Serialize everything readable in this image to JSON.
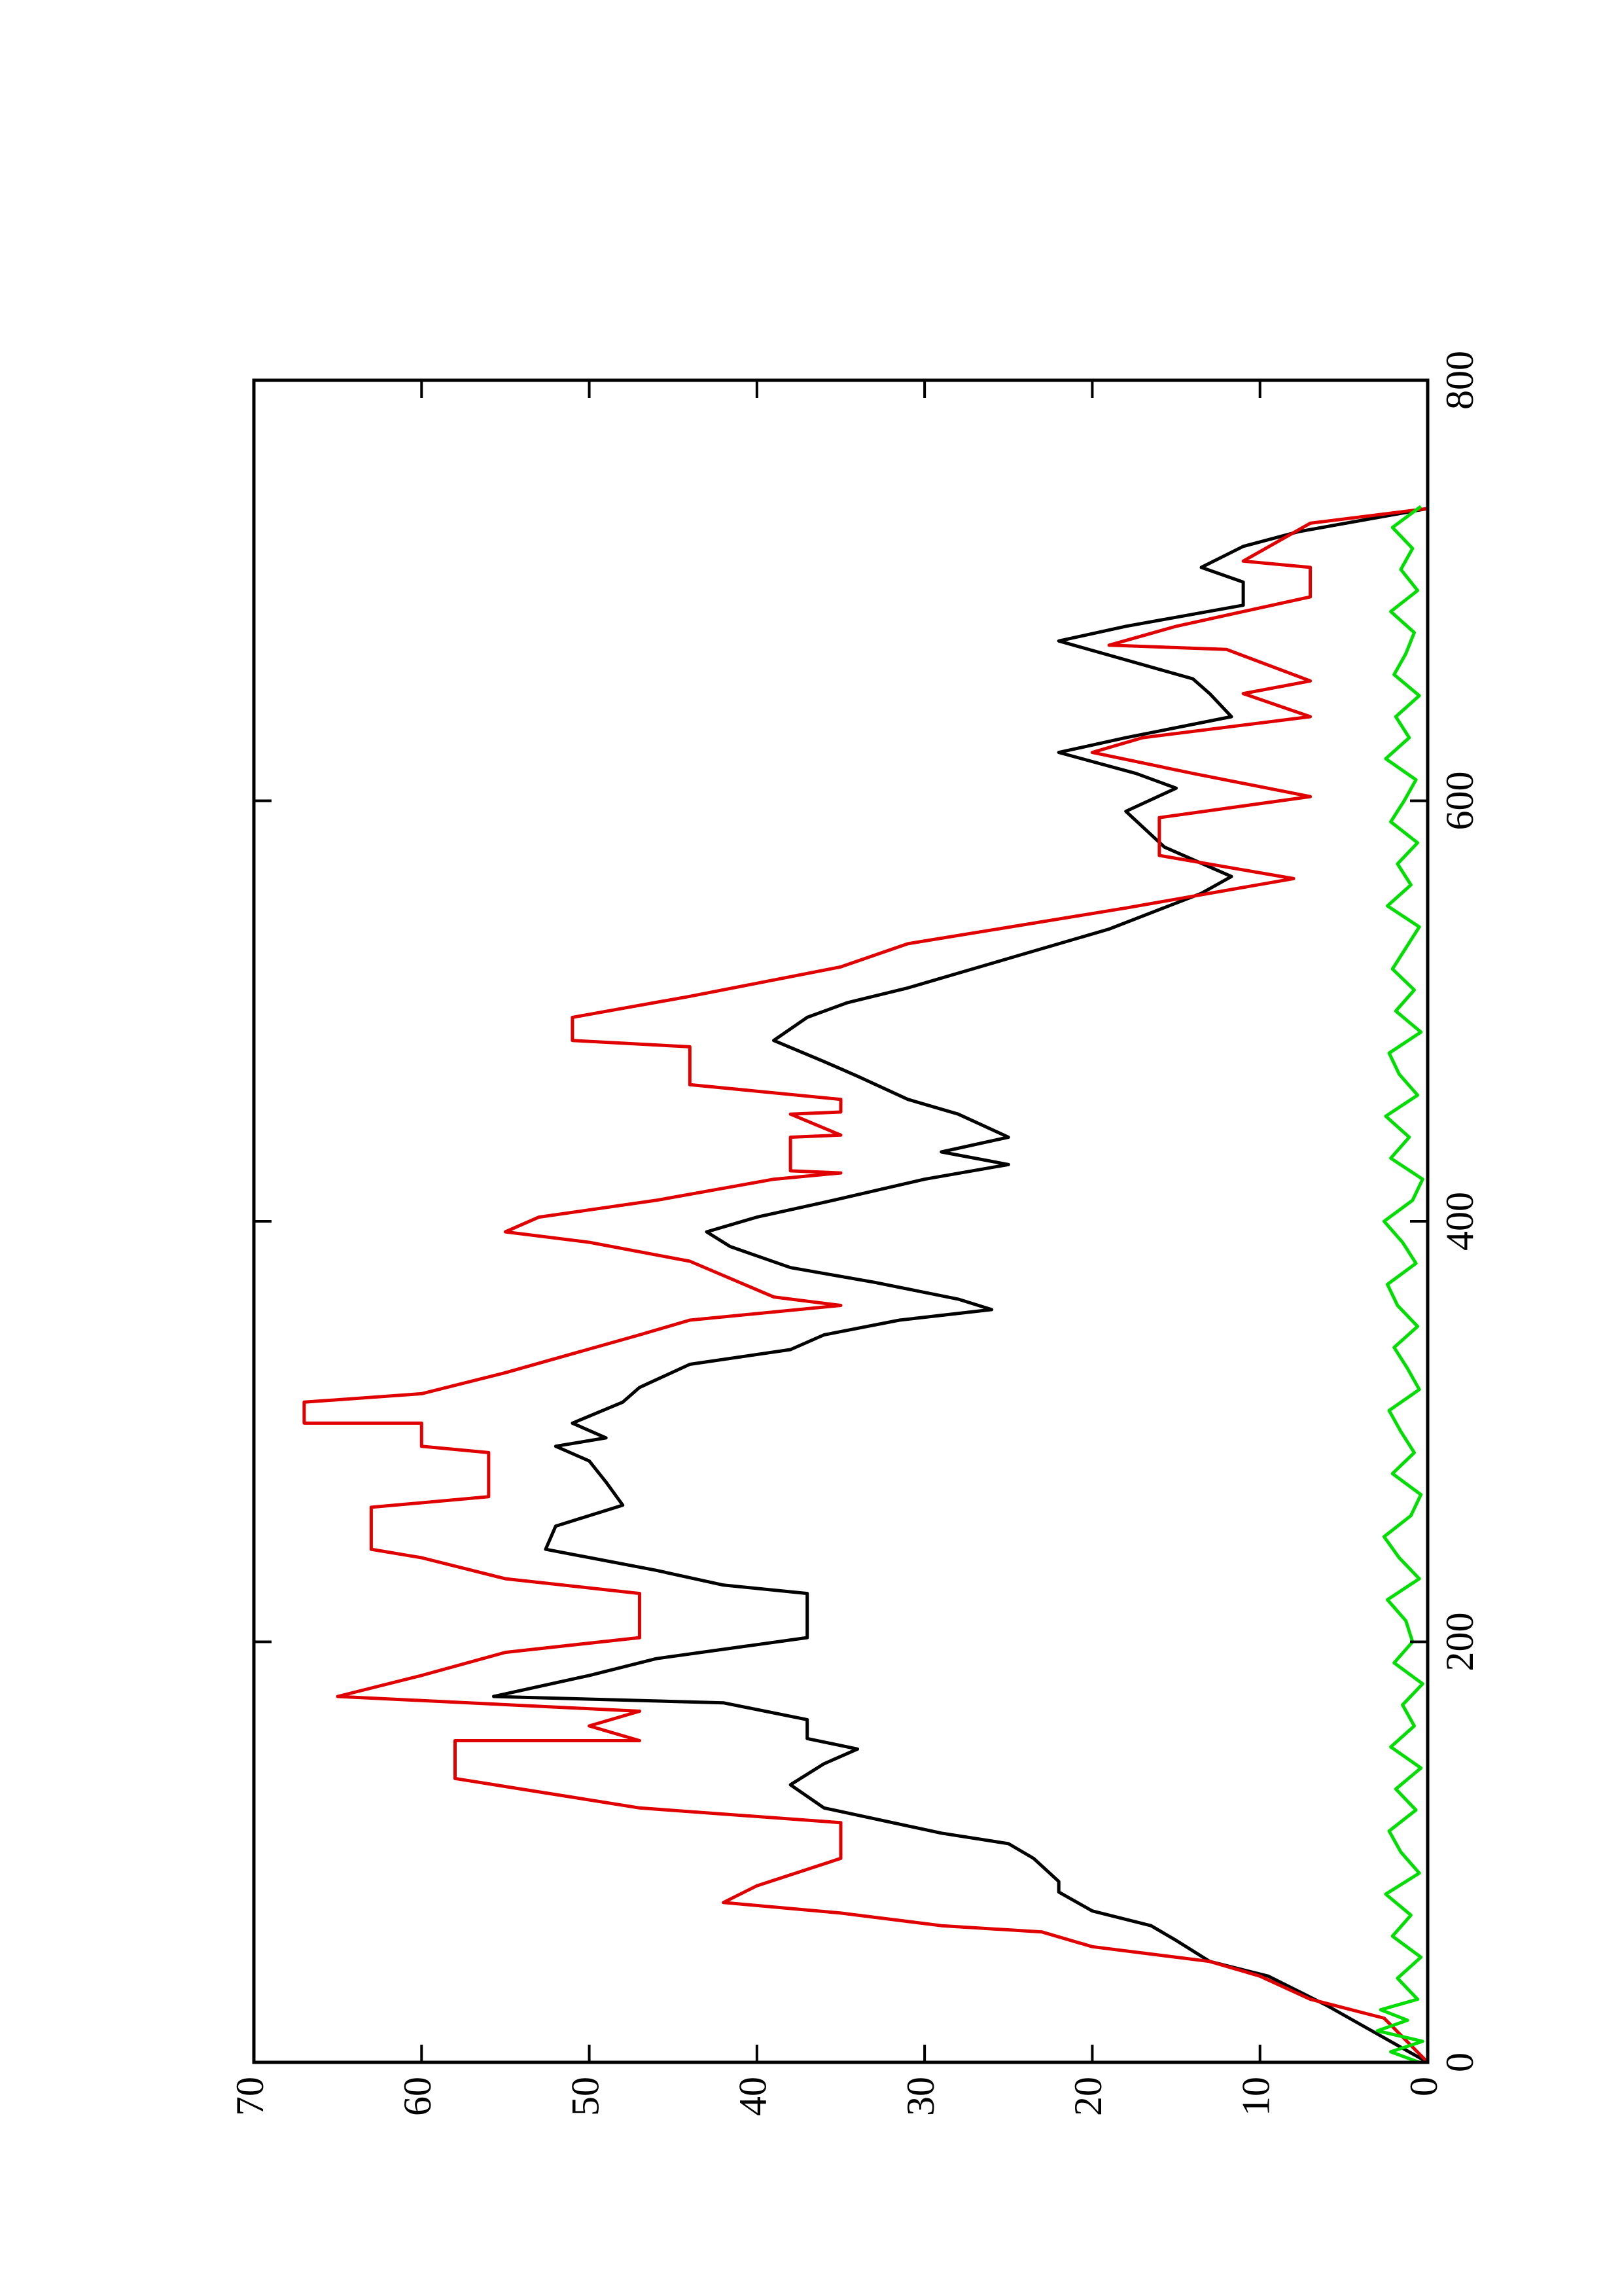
{
  "chart_data": {
    "type": "line",
    "xlim": [
      0,
      800
    ],
    "xticks": [
      0,
      200,
      400,
      600,
      800
    ],
    "ylim": [
      0,
      70
    ],
    "yticks": [
      0,
      10,
      20,
      30,
      40,
      50,
      60,
      70
    ],
    "rotated": true,
    "series": [
      {
        "color": "#000000",
        "x": [
          0,
          27,
          41,
          48,
          58,
          65,
          72,
          81,
          86,
          97,
          104,
          109,
          121,
          132,
          142,
          149,
          154,
          163,
          171,
          174,
          184,
          192,
          202,
          223,
          227,
          234,
          244,
          255,
          265,
          276,
          286,
          293,
          297,
          304,
          314,
          321,
          332,
          339,
          346,
          353,
          358,
          363,
          371,
          378,
          388,
          395,
          402,
          409,
          420,
          427,
          433,
          440,
          451,
          458,
          469,
          476,
          486,
          497,
          504,
          511,
          525,
          539,
          556,
          564,
          578,
          595,
          606,
          613,
          623,
          630,
          640,
          651,
          658,
          676,
          683,
          693,
          704,
          711,
          721,
          728,
          739
        ],
        "values": [
          0,
          6,
          9.5,
          13,
          15,
          16.5,
          20,
          22,
          22,
          23.5,
          25,
          29,
          36,
          38,
          36,
          34,
          37,
          37,
          42,
          55.7,
          50,
          46,
          37,
          37,
          42,
          46,
          52.6,
          52,
          48,
          49,
          50,
          52,
          49,
          51,
          48,
          47,
          44,
          38,
          36,
          31.5,
          26,
          28,
          33,
          38,
          41.6,
          43,
          40,
          36,
          30,
          25,
          29,
          25,
          28,
          31,
          34,
          36,
          39,
          37,
          34.6,
          31,
          25,
          19,
          13.5,
          11.7,
          15.7,
          18,
          15,
          17.4,
          22,
          18,
          11.7,
          13,
          14,
          22,
          18,
          11,
          11,
          13.5,
          11,
          7.7,
          0
        ]
      },
      {
        "color": "#e00000",
        "x": [
          0,
          21,
          30,
          41,
          48,
          55,
          62,
          65,
          71,
          76,
          84,
          97,
          114,
          121,
          135,
          153,
          153,
          160,
          167,
          174,
          184,
          195,
          202,
          223,
          230,
          240,
          244,
          264,
          269,
          290,
          293,
          304,
          304,
          314,
          318,
          328,
          346,
          353,
          360,
          364,
          381,
          390,
          395,
          402,
          410,
          420,
          423,
          424,
          440,
          441,
          451,
          452,
          458,
          465,
          483,
          486,
          497,
          507,
          521,
          532,
          549,
          563,
          574,
          592,
          602,
          613,
          623,
          630,
          640,
          651,
          657,
          672,
          674,
          683,
          697,
          711,
          714,
          732,
          739
        ],
        "values": [
          0,
          2.6,
          7,
          10,
          13,
          20,
          23,
          29,
          35,
          42,
          40,
          35,
          35,
          47,
          58,
          58,
          47,
          50,
          47,
          65,
          60,
          55,
          47,
          47,
          55,
          60,
          63,
          63,
          56,
          56,
          60,
          60,
          67,
          67,
          60,
          55,
          47,
          44,
          35,
          39,
          44,
          50,
          55,
          53,
          46,
          39,
          35,
          38,
          38,
          35,
          38,
          35,
          35,
          44,
          44,
          51,
          51,
          44,
          35,
          31,
          18,
          8,
          16,
          16,
          7,
          14,
          20,
          17,
          7,
          11,
          7,
          12,
          19,
          15,
          7,
          7,
          11,
          7,
          0
        ]
      },
      {
        "color": "#00dd00",
        "x": [
          0,
          5,
          10,
          15,
          20,
          25,
          30,
          40,
          50,
          60,
          70,
          80,
          90,
          100,
          110,
          120,
          130,
          140,
          150,
          160,
          170,
          180,
          190,
          200,
          210,
          220,
          230,
          240,
          250,
          260,
          270,
          280,
          290,
          300,
          310,
          320,
          330,
          340,
          350,
          360,
          370,
          380,
          390,
          400,
          410,
          420,
          430,
          440,
          450,
          460,
          470,
          480,
          490,
          500,
          510,
          520,
          530,
          540,
          550,
          560,
          570,
          580,
          590,
          600,
          610,
          620,
          630,
          640,
          650,
          660,
          670,
          680,
          690,
          700,
          710,
          720,
          730,
          740
        ],
        "values": [
          0.5,
          2.2,
          0.3,
          3,
          1.2,
          2.8,
          0.6,
          1.8,
          0.4,
          2.1,
          1.0,
          2.5,
          0.5,
          1.6,
          2.3,
          0.7,
          1.9,
          0.4,
          2.2,
          0.8,
          1.5,
          0.3,
          2.0,
          0.9,
          1.3,
          2.4,
          0.5,
          1.7,
          2.6,
          1.0,
          0.4,
          2.1,
          0.8,
          1.6,
          2.3,
          0.5,
          1.2,
          2.0,
          0.6,
          1.8,
          2.4,
          0.7,
          1.5,
          2.6,
          0.9,
          0.3,
          2.2,
          1.1,
          2.5,
          0.6,
          1.7,
          2.3,
          0.4,
          1.9,
          0.8,
          2.1,
          1.3,
          0.5,
          2.4,
          1.0,
          1.8,
          0.6,
          2.2,
          1.4,
          0.7,
          2.5,
          1.1,
          1.9,
          0.5,
          2.0,
          1.3,
          0.8,
          2.2,
          0.6,
          1.6,
          0.9,
          2.1,
          0.4
        ]
      }
    ]
  }
}
